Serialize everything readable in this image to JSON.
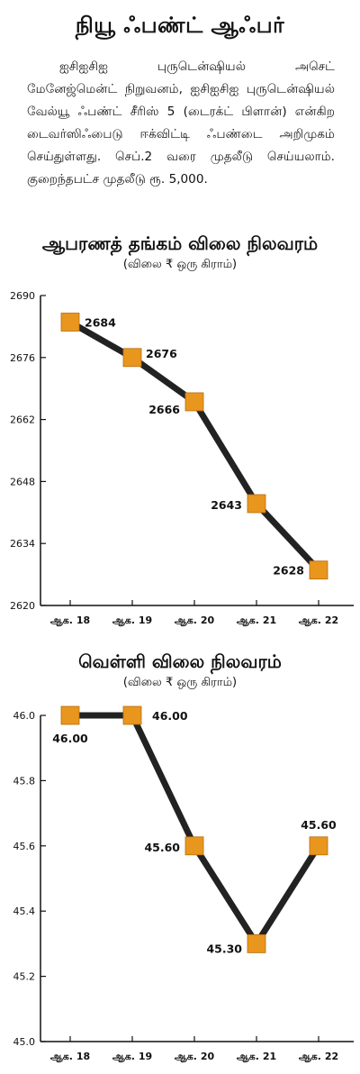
{
  "article": {
    "title": "நியூ ஃபண்ட் ஆஃபர்",
    "body": "ஐசிஐசிஐ புருடென்ஷியல் அசெட் மேனேஜ்மென்ட் நிறுவனம், ஐசிஐசிஐ புருடென்ஷியல் வேல்யூ ஃபண்ட் சீரிஸ் 5 (டைரக்ட் பிளான்) என்கிற டைவர்ஸிஃபைடு ஈக்விட்டி ஃபண்டை அறிமுகம் செய்துள்ளது. செப்.2 வரை முதலீடு செய்யலாம். குறைந்தபட்ச முதலீடு ரூ. 5,000."
  },
  "chart_data": [
    {
      "type": "line",
      "title": "ஆபரணத் தங்கம் விலை நிலவரம்",
      "subtitle": "(விலை ₹ ஒரு கிராம்)",
      "categories": [
        "ஆக. 18",
        "ஆக. 19",
        "ஆக. 20",
        "ஆக. 21",
        "ஆக. 22"
      ],
      "values": [
        2684,
        2676,
        2666,
        2643,
        2628
      ],
      "data_labels": [
        "2684",
        "2676",
        "2666",
        "2643",
        "2628"
      ],
      "ylim": [
        2620,
        2690
      ],
      "yticks": [
        "2690",
        "2676",
        "2662",
        "2648",
        "2634",
        "2620"
      ],
      "line_color": "#222222",
      "marker_color": "#e8961e",
      "grid": false
    },
    {
      "type": "line",
      "title": "வெள்ளி விலை நிலவரம்",
      "subtitle": "(விலை ₹ ஒரு கிராம்)",
      "categories": [
        "ஆக. 18",
        "ஆக. 19",
        "ஆக. 20",
        "ஆக. 21",
        "ஆக. 22"
      ],
      "values": [
        46.0,
        46.0,
        45.6,
        45.3,
        45.6
      ],
      "data_labels": [
        "46.00",
        "46.00",
        "45.60",
        "45.30",
        "45.60"
      ],
      "ylim": [
        45.0,
        46.0
      ],
      "yticks": [
        "46.0",
        "45.8",
        "45.6",
        "45.4",
        "45.2",
        "45.0"
      ],
      "line_color": "#222222",
      "marker_color": "#e8961e",
      "grid": false
    }
  ]
}
